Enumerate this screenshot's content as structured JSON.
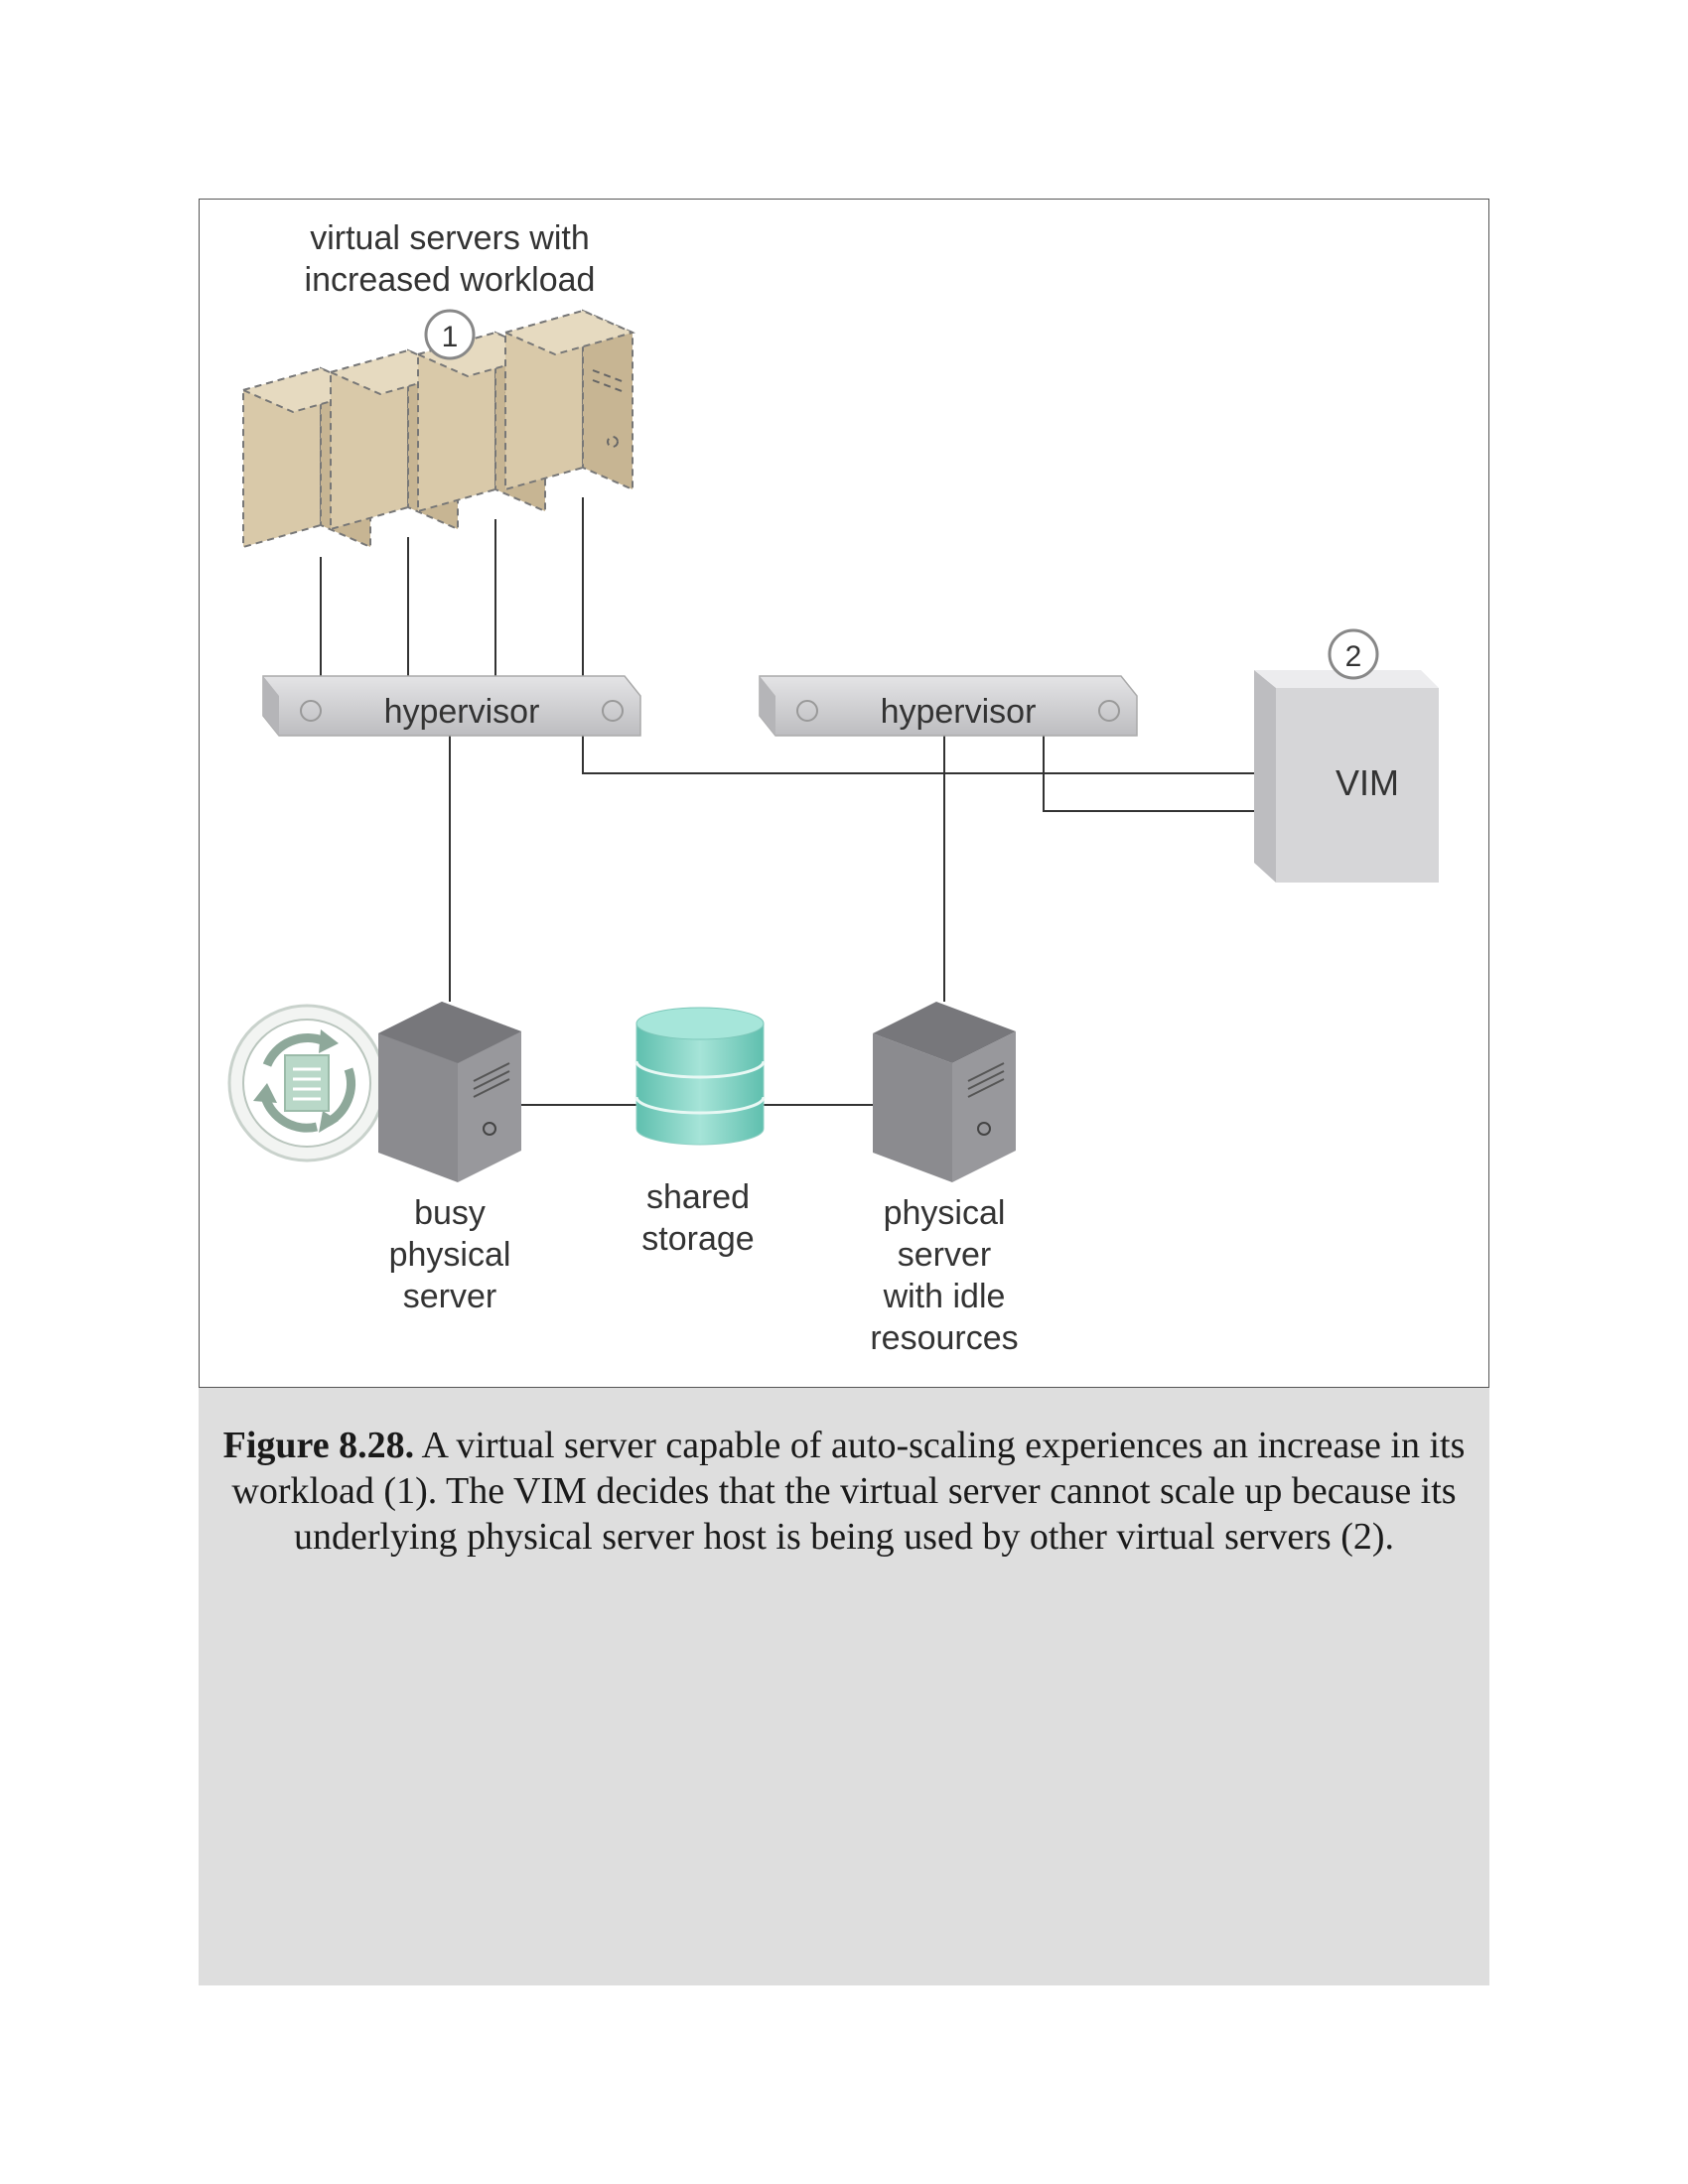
{
  "diagram": {
    "labels": {
      "virtual_servers_line1": "virtual servers with",
      "virtual_servers_line2": "increased workload",
      "hypervisor_left": "hypervisor",
      "hypervisor_right": "hypervisor",
      "vim": "VIM",
      "busy_server": [
        "busy",
        "physical",
        "server"
      ],
      "shared_storage": [
        "shared",
        "storage"
      ],
      "idle_server": [
        "physical",
        "server",
        "with idle",
        "resources"
      ]
    },
    "markers": {
      "marker_1": "1",
      "marker_2": "2"
    },
    "colors": {
      "virtual_server_fill": "#d8c8a8",
      "physical_server_fill": "#8a8a8e",
      "storage_fill": "#7fd3c3",
      "hypervisor_fill": "#d2d2d4",
      "vim_fill": "#d6d6d8"
    },
    "icons": [
      "virtual-server-icon",
      "physical-server-icon",
      "database-icon",
      "auto-scaling-icon"
    ]
  },
  "caption": {
    "label": "Figure 8.28.",
    "text": " A virtual server capable of auto-scaling experiences an increase in its workload (1). The VIM decides that the virtual server cannot scale up because its underlying physical server host is being used by other virtual servers (2)."
  }
}
